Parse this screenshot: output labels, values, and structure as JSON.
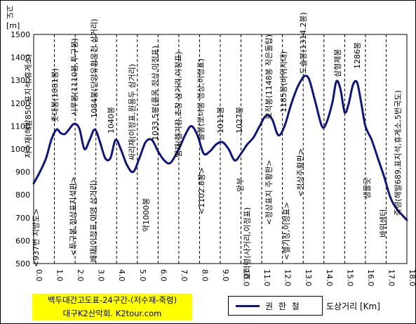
{
  "chart_data": {
    "type": "line",
    "title_lines": [
      "백두대간고도표-24구간-(저수재-죽령)",
      "대구K2산악회. K2tour.com"
    ],
    "ylabel": "고도",
    "yunit": "[m]",
    "xlabel": "도상거리 [Km]",
    "xlim": [
      0,
      18
    ],
    "ylim": [
      500,
      1500
    ],
    "xticks": [
      "0.0",
      "1.0",
      "2.0",
      "3.0",
      "4.0",
      "5.0",
      "6.0",
      "7.0",
      "8.0",
      "9.0",
      "10.0",
      "11.0",
      "12.0",
      "13.0",
      "14.0",
      "15.0",
      "16.0",
      "17.0",
      "18.0"
    ],
    "yticks": [
      "500",
      "600",
      "700",
      "800",
      "900",
      "1000",
      "1100",
      "1200",
      "1300",
      "1400",
      "1500"
    ],
    "grid": "vertical dashed",
    "legend_position": "bottom",
    "series": [
      {
        "name": "권 한 철",
        "color": "#0f1580",
        "x": [
          0.0,
          0.3,
          0.6,
          0.85,
          1.1,
          1.3,
          1.5,
          1.7,
          1.95,
          2.2,
          2.45,
          2.7,
          2.95,
          3.2,
          3.45,
          3.7,
          3.95,
          4.2,
          4.5,
          4.8,
          5.1,
          5.4,
          5.7,
          6.0,
          6.3,
          6.6,
          7.0,
          7.3,
          7.6,
          7.9,
          8.2,
          8.5,
          8.8,
          9.1,
          9.4,
          9.7,
          10.0,
          10.3,
          10.6,
          10.9,
          11.2,
          11.5,
          11.8,
          12.1,
          12.4,
          12.7,
          12.9,
          13.1,
          13.3,
          13.6,
          13.9,
          14.1,
          14.4,
          14.6,
          14.8,
          15.0,
          15.2,
          15.4,
          15.6,
          15.8,
          16.0,
          16.3,
          16.6,
          16.9,
          17.2,
          17.5,
          18.0
        ],
        "y": [
          850,
          900,
          960,
          1040,
          1085,
          1070,
          1065,
          1085,
          1110,
          1090,
          1000,
          1040,
          1085,
          1030,
          960,
          960,
          1040,
          1000,
          930,
          900,
          960,
          1030,
          1040,
          990,
          950,
          940,
          1000,
          1060,
          1100,
          1060,
          980,
          990,
          1020,
          1030,
          1000,
          950,
          980,
          1020,
          1050,
          1100,
          1145,
          1130,
          1060,
          1100,
          1190,
          1265,
          1300,
          1320,
          1300,
          1200,
          1100,
          1110,
          1200,
          1295,
          1260,
          1160,
          1200,
          1280,
          1290,
          1200,
          1100,
          1040,
          960,
          880,
          790,
          740,
          690
        ]
      }
    ]
  },
  "annotations": [
    {
      "text": "저수재(해발850,표지석,휴게소)"
    },
    {
      "text": "<937번 지방도>"
    },
    {
      "text": "촛대봉(1081봉)"
    },
    {
      "text": "시루봉(1110봉,투구봉)"
    },
    {
      "text": "<투구봉,정상표지석판>"
    },
    {
      "text": "1084봉(단양유황온천 삼거리)"
    },
    {
      "text": "배재(이정표,야영 삼거리)"
    },
    {
      "text": "1040봉"
    },
    {
      "text": "싸리재(이정표,원용두 삼거리)"
    },
    {
      "text": "약1000봉"
    },
    {
      "text": "1033.5봉(흙목 정상,이정표)"
    },
    {
      "text": "뱀재(헬기장,초창 삼거리,이정표)"
    },
    {
      "text": "솔봉(모녀봉 정상,이정표)"
    },
    {
      "text": "<1102.8봉>"
    },
    {
      "text": "1011봉"
    },
    {
      "text": "1027봉"
    },
    {
      "text": "묘적령(사거리,이정표)"
    },
    {
      "text": "안부"
    },
    {
      "text": "<정상표지 주황판>"
    },
    {
      "text": "묘적봉(1148봉 작은돌탑)"
    },
    {
      "text": "1185봉(바위지대)"
    },
    {
      "text": "<헬기장,이정표>"
    },
    {
      "text": "<정상주황판>"
    },
    {
      "text": "도솔봉(1314.2봉)"
    },
    {
      "text": "삼형제봉"
    },
    {
      "text": "1286봉"
    },
    {
      "text": "바위샘터"
    },
    {
      "text": "샘물곳"
    },
    {
      "text": "죽령(해발689,표지석,휴게소,5번국도)"
    }
  ],
  "colors": {
    "line": "#0f1580",
    "title_bg": "#ffff00",
    "frame": "#000000"
  }
}
